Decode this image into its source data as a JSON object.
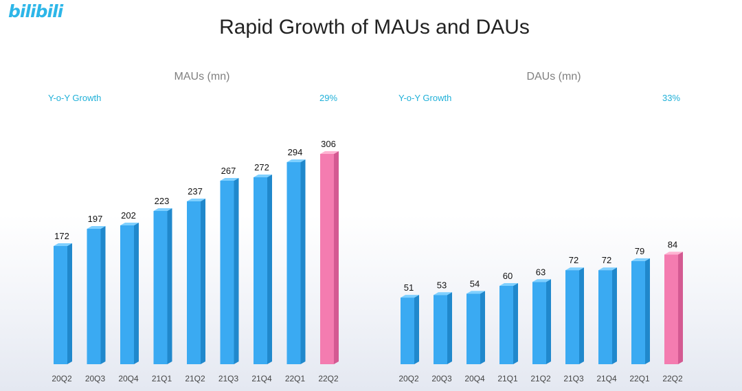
{
  "logo_text": "bilibili",
  "title": "Rapid Growth of MAUs and DAUs",
  "charts": [
    {
      "title": "MAUs (mn)",
      "yoy_label": "Y-o-Y Growth",
      "yoy_value": "29%"
    },
    {
      "title": "DAUs (mn)",
      "yoy_label": "Y-o-Y Growth",
      "yoy_value": "33%"
    }
  ],
  "colors": {
    "bar_front": "#3aaaf2",
    "bar_top": "#7fd0ff",
    "bar_side": "#2088cc",
    "highlight_front": "#f47cb0",
    "highlight_top": "#ffb3d2",
    "highlight_side": "#d45a92",
    "accent": "#1fb0d8"
  },
  "chart_data": [
    {
      "type": "bar",
      "title": "MAUs (mn)",
      "categories": [
        "20Q2",
        "20Q3",
        "20Q4",
        "21Q1",
        "21Q2",
        "21Q3",
        "21Q4",
        "22Q1",
        "22Q2"
      ],
      "values": [
        172,
        197,
        202,
        223,
        237,
        267,
        272,
        294,
        306
      ],
      "highlight_index": 8,
      "annotation": "Y-o-Y Growth 29%"
    },
    {
      "type": "bar",
      "title": "DAUs (mn)",
      "categories": [
        "20Q2",
        "20Q3",
        "20Q4",
        "21Q1",
        "21Q2",
        "21Q3",
        "21Q4",
        "22Q1",
        "22Q2"
      ],
      "values": [
        51,
        53,
        54,
        60,
        63,
        72,
        72,
        79,
        84
      ],
      "highlight_index": 8,
      "annotation": "Y-o-Y Growth 33%"
    }
  ]
}
